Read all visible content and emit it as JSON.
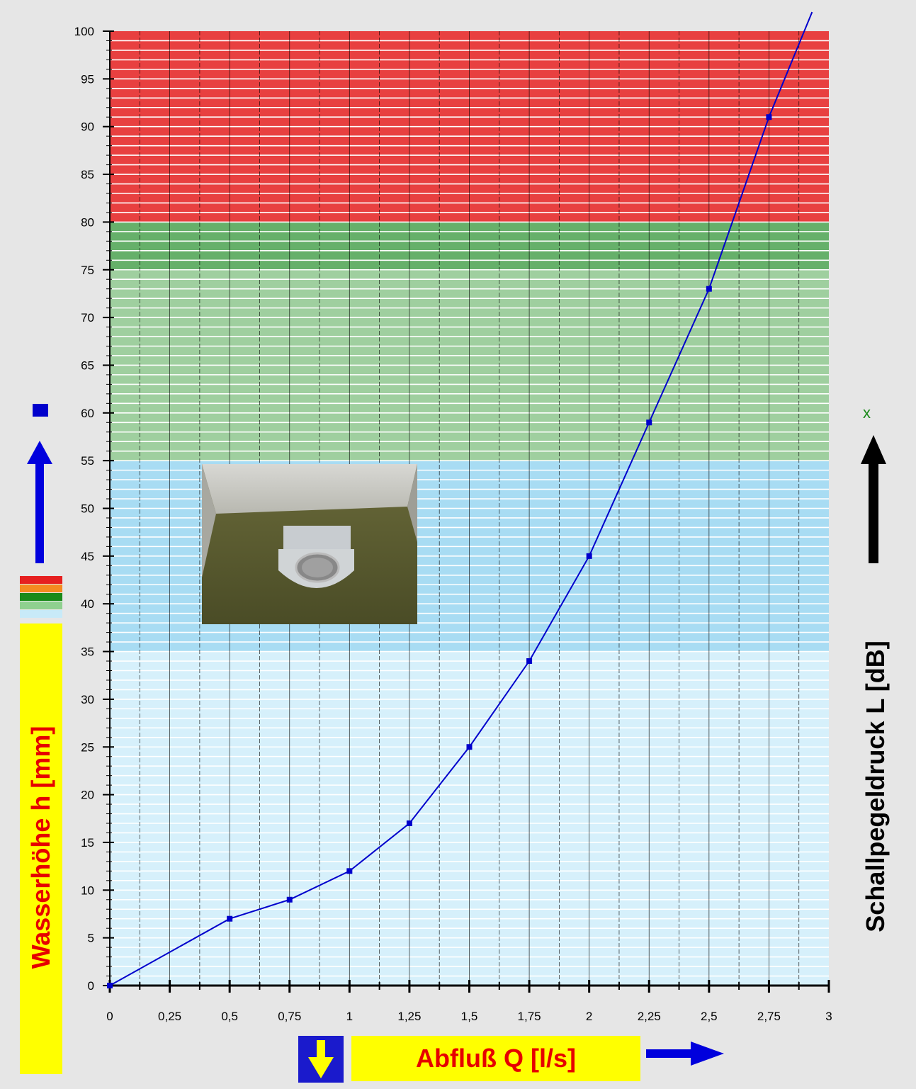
{
  "chart_data": {
    "type": "line",
    "title": "",
    "xlabel": "Abfluß Q [l/s]",
    "ylabel": "Wasserhöhe h [mm]",
    "y2label": "Schallpegeldruck L [dB]",
    "y2marker": "x",
    "xlim": [
      0,
      3
    ],
    "ylim": [
      0,
      100
    ],
    "x_tick_labels": [
      "0",
      "0,25",
      "0,5",
      "0,75",
      "1",
      "1,25",
      "1,5",
      "1,75",
      "2",
      "2,25",
      "2,5",
      "2,75",
      "3"
    ],
    "y_tick_labels": [
      "0",
      "5",
      "10",
      "15",
      "20",
      "25",
      "30",
      "35",
      "40",
      "45",
      "50",
      "55",
      "60",
      "65",
      "70",
      "75",
      "80",
      "85",
      "90",
      "95",
      "100"
    ],
    "series": [
      {
        "color": "#0000cc",
        "x": [
          0,
          0.5,
          0.75,
          1,
          1.25,
          1.5,
          1.75,
          2,
          2.25,
          2.5,
          2.75
        ],
        "y": [
          0,
          7,
          9,
          12,
          17,
          25,
          34,
          45,
          59,
          73,
          91
        ],
        "extends_to": [
          2.93,
          102
        ]
      }
    ],
    "bands": [
      {
        "from": 0,
        "to": 35,
        "color": "#d6f0fb"
      },
      {
        "from": 35,
        "to": 55,
        "color": "#a8dcf3"
      },
      {
        "from": 55,
        "to": 75,
        "color": "#9fcf9f"
      },
      {
        "from": 75,
        "to": 80,
        "color": "#66b06a"
      },
      {
        "from": 80,
        "to": 102,
        "color": "#e84040"
      }
    ],
    "grid": true,
    "legend_strip_colors": [
      "#e62020",
      "#f58a20",
      "#f0d020",
      "#1a8a1a",
      "#8fd08f",
      "#c8eaf8"
    ]
  },
  "icons": {
    "up_arrow": "arrow-up-icon",
    "down_arrow": "arrow-down-icon",
    "right_arrow": "arrow-right-icon",
    "photo": "floor-drain-photo"
  }
}
